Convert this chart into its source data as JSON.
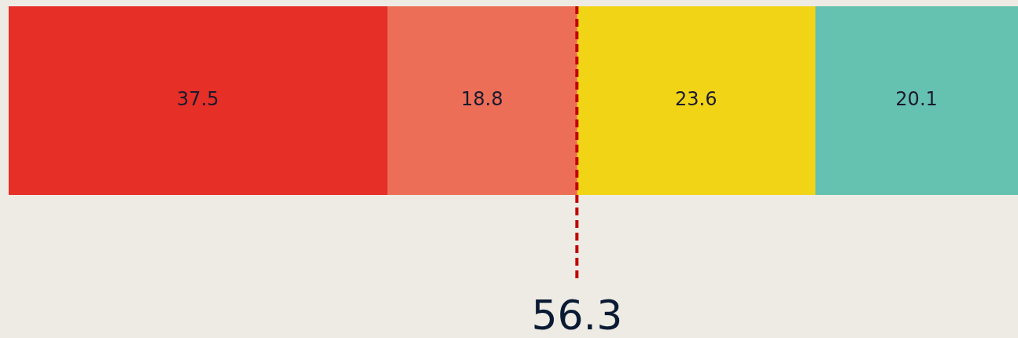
{
  "chart_data": {
    "type": "bar",
    "orientation": "horizontal",
    "stacked": true,
    "categories": [
      null
    ],
    "series": [
      {
        "color": "#e52f27",
        "values": [
          37.5
        ]
      },
      {
        "color": "#ed6e57",
        "values": [
          18.8
        ]
      },
      {
        "color": "#f2d416",
        "values": [
          23.6
        ]
      },
      {
        "color": "#65c1b0",
        "values": [
          20.1
        ]
      }
    ],
    "xlim": [
      0,
      100
    ],
    "data_labels": true,
    "tick_labels": false,
    "grid": false,
    "legend": false,
    "ref_lines": [
      {
        "axis": "x",
        "value": 56.3,
        "label": "56.3",
        "color": "#c00000",
        "line_style": "dashed"
      }
    ]
  }
}
